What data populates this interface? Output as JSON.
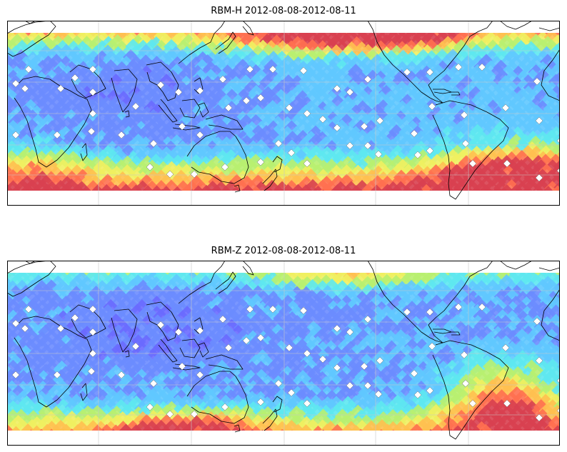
{
  "panels": [
    {
      "id": "top",
      "title": "RBM-H 2012-08-08-2012-08-11",
      "field": "H"
    },
    {
      "id": "bottom",
      "title": "RBM-Z 2012-08-08-2012-08-11",
      "field": "Z"
    }
  ],
  "colors": {
    "colormap": [
      "#6a6aff",
      "#6b8cff",
      "#60c8ff",
      "#5ee8f0",
      "#b8f070",
      "#f0f060",
      "#ffc050",
      "#ff7050",
      "#d84050"
    ],
    "land_outline": "#000000",
    "grid": "#c8c8c8",
    "station_marker": "#ffffff"
  },
  "map": {
    "projection": "Plate Carree",
    "grid": true
  }
}
